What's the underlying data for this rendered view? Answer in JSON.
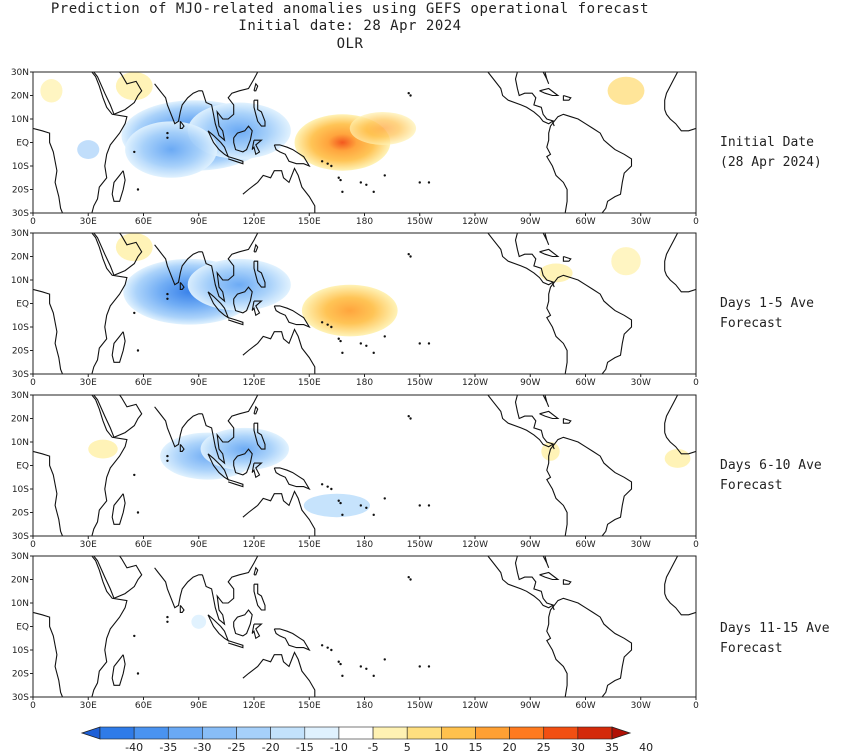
{
  "title": {
    "line1": "Prediction of MJO-related anomalies using GEFS operational forecast",
    "line2": "Initial date: 28 Apr 2024",
    "line3": "OLR"
  },
  "lat_ticks": [
    "30N",
    "20N",
    "10N",
    "EQ",
    "10S",
    "20S",
    "30S"
  ],
  "lon_ticks": [
    "0",
    "30E",
    "60E",
    "90E",
    "120E",
    "150E",
    "180",
    "150W",
    "120W",
    "90W",
    "60W",
    "30W",
    "0"
  ],
  "panels": [
    {
      "label_line1": "Initial Date",
      "label_line2": "(28 Apr 2024)"
    },
    {
      "label_line1": "Days 1-5 Ave",
      "label_line2": "Forecast"
    },
    {
      "label_line1": "Days 6-10 Ave",
      "label_line2": "Forecast"
    },
    {
      "label_line1": "Days 11-15 Ave",
      "label_line2": "Forecast"
    }
  ],
  "colorbar": {
    "labels": [
      "-40",
      "-35",
      "-30",
      "-25",
      "-20",
      "-15",
      "-10",
      "-5",
      "5",
      "10",
      "15",
      "20",
      "25",
      "30",
      "35",
      "40"
    ],
    "colors": [
      "#1e5fd6",
      "#2f7be8",
      "#4a93f0",
      "#6aa9f4",
      "#88bdf7",
      "#a6d0fa",
      "#c3e2fc",
      "#dff1fe",
      "#ffffff",
      "#fff2b3",
      "#ffdf7f",
      "#ffc14d",
      "#ffa033",
      "#ff7a1f",
      "#f24f12",
      "#d42a0a",
      "#b01005"
    ]
  }
}
